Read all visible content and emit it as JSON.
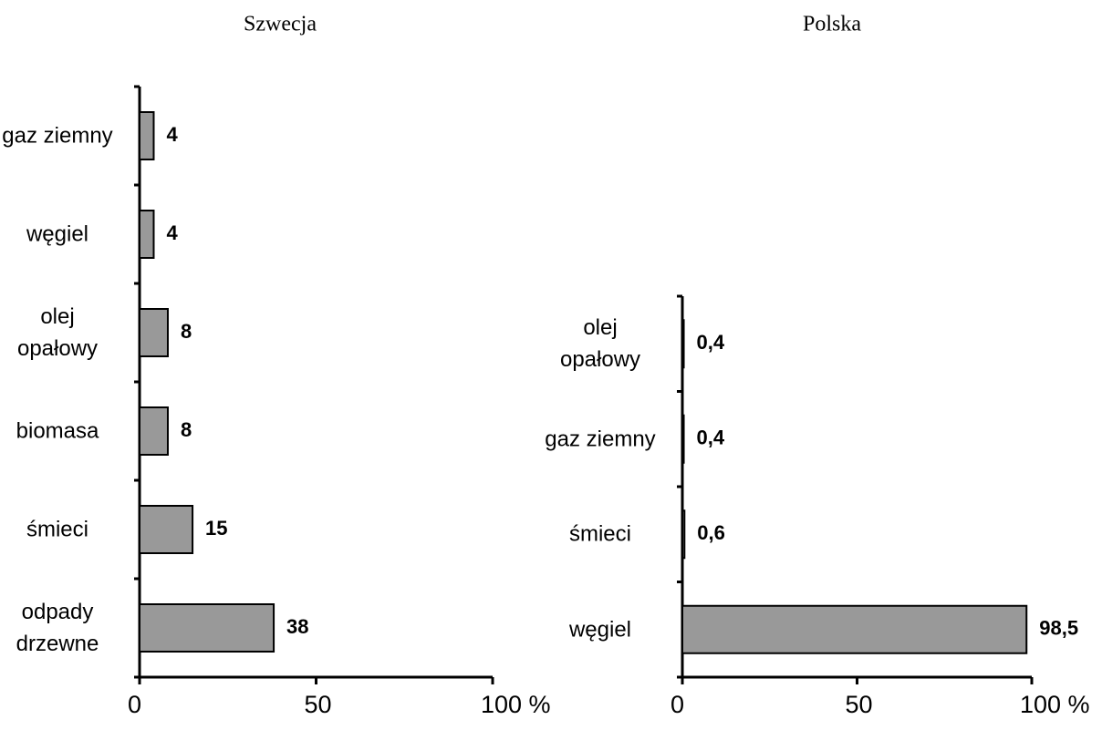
{
  "chart_data": [
    {
      "type": "bar",
      "orientation": "horizontal",
      "title": "Szwecja",
      "categories": [
        "gaz ziemny",
        "węgiel",
        "olej opałowy",
        "biomasa",
        "śmieci",
        "odpady drzewne"
      ],
      "values": [
        4,
        4,
        8,
        8,
        15,
        38
      ],
      "color": "#999999",
      "xlim": [
        0,
        100
      ],
      "xticks": [
        0,
        50,
        {
          "value": 100,
          "label": "100 %"
        }
      ]
    },
    {
      "type": "bar",
      "orientation": "horizontal",
      "title": "Polska",
      "categories": [
        "olej opałowy",
        "gaz ziemny",
        "śmieci",
        "węgiel"
      ],
      "values": [
        0.4,
        0.4,
        0.6,
        98.5
      ],
      "value_labels": [
        "0,4",
        "0,4",
        "0,6",
        "98,5"
      ],
      "color": "#999999",
      "xlim": [
        0,
        100
      ],
      "xticks": [
        0,
        50,
        {
          "value": 100,
          "label": "100 %"
        }
      ]
    }
  ]
}
